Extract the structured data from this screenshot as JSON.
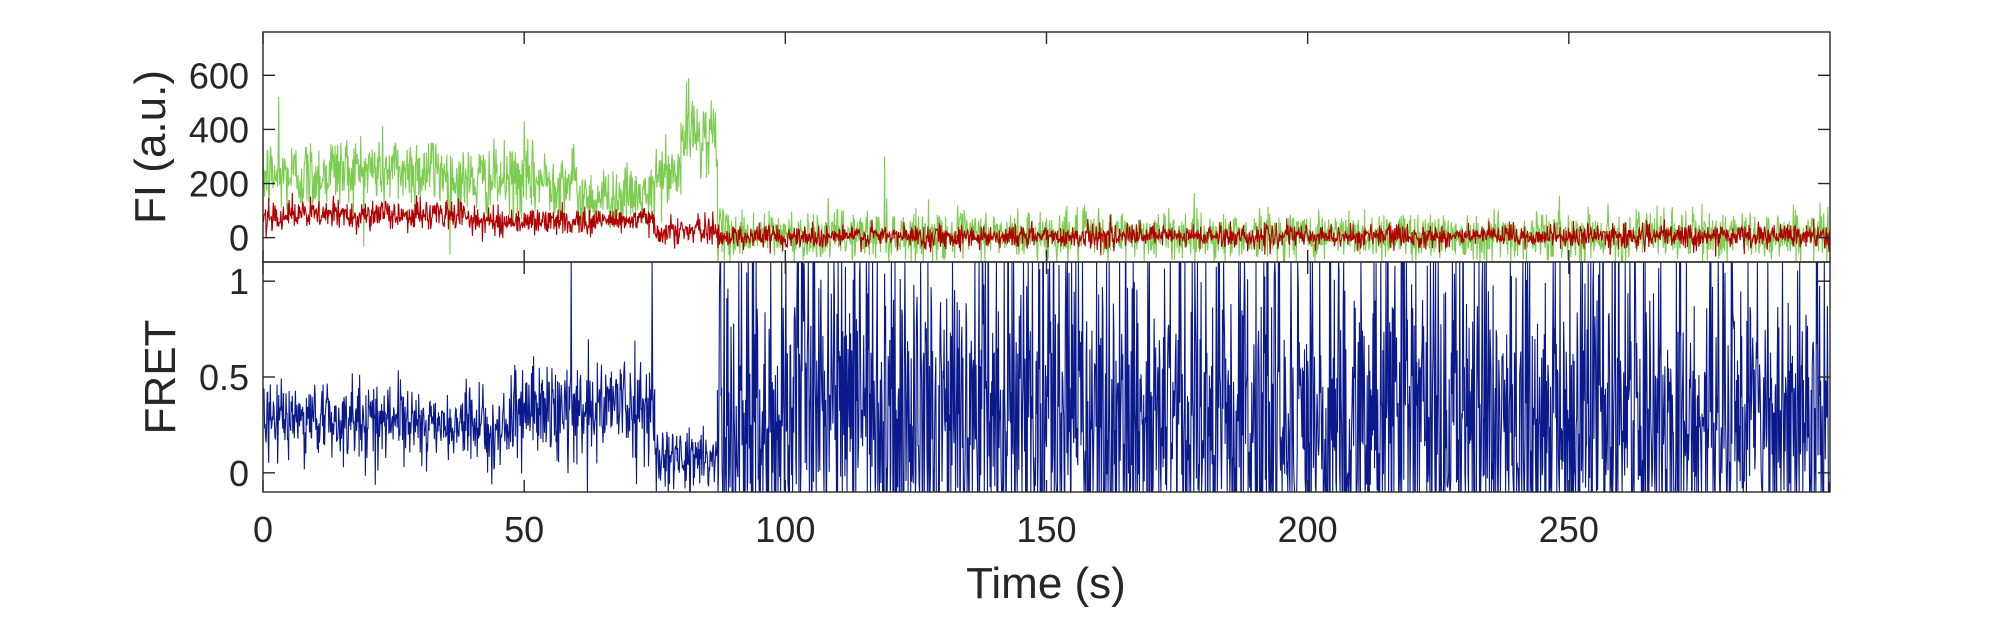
{
  "chart_data": [
    {
      "type": "line",
      "title": "",
      "xlabel": "",
      "ylabel": "FI (a.u.)",
      "xlim": [
        0,
        300
      ],
      "ylim": [
        -90,
        760
      ],
      "yticks": [
        0,
        200,
        400,
        600
      ],
      "ytick_labels": [
        "0",
        "200",
        "400",
        "600"
      ],
      "grid": false,
      "series": [
        {
          "color": "#7ccc50",
          "sample_interval_s": 0.1,
          "segments": [
            {
              "t_start": 0,
              "t_end": 12,
              "mean": 230,
              "noise": 70
            },
            {
              "t_start": 12,
              "t_end": 35,
              "mean": 250,
              "noise": 70
            },
            {
              "t_start": 35,
              "t_end": 60,
              "mean": 210,
              "noise": 65
            },
            {
              "t_start": 60,
              "t_end": 75,
              "mean": 150,
              "noise": 55
            },
            {
              "t_start": 75,
              "t_end": 80,
              "mean": 230,
              "noise": 60
            },
            {
              "t_start": 80,
              "t_end": 87,
              "mean": 380,
              "noise": 70
            },
            {
              "t_start": 87,
              "t_end": 300,
              "mean": 10,
              "noise": 45
            }
          ],
          "peaks": [
            {
              "t": 81.5,
              "value": 590
            },
            {
              "t": 3,
              "value": 520
            },
            {
              "t": 50,
              "value": 430
            },
            {
              "t": 119,
              "value": 300
            }
          ]
        },
        {
          "color": "#b00000",
          "sample_interval_s": 0.1,
          "segments": [
            {
              "t_start": 0,
              "t_end": 40,
              "mean": 85,
              "noise": 28
            },
            {
              "t_start": 40,
              "t_end": 65,
              "mean": 60,
              "noise": 25
            },
            {
              "t_start": 65,
              "t_end": 75,
              "mean": 65,
              "noise": 25
            },
            {
              "t_start": 75,
              "t_end": 87,
              "mean": 25,
              "noise": 25
            },
            {
              "t_start": 87,
              "t_end": 300,
              "mean": 5,
              "noise": 22
            }
          ],
          "peaks": []
        }
      ]
    },
    {
      "type": "line",
      "title": "",
      "xlabel": "Time (s)",
      "ylabel": "FRET",
      "xlim": [
        0,
        300
      ],
      "ylim": [
        -0.1,
        1.1
      ],
      "xticks": [
        0,
        50,
        100,
        150,
        200,
        250
      ],
      "xtick_labels": [
        "0",
        "50",
        "100",
        "150",
        "200",
        "250"
      ],
      "yticks": [
        0,
        0.5,
        1
      ],
      "ytick_labels": [
        "0",
        "0.5",
        "1"
      ],
      "grid": false,
      "series": [
        {
          "color": "#0a1a8c",
          "sample_interval_s": 0.1,
          "segments": [
            {
              "t_start": 0,
              "t_end": 30,
              "mean": 0.28,
              "noise": 0.1
            },
            {
              "t_start": 30,
              "t_end": 48,
              "mean": 0.24,
              "noise": 0.09
            },
            {
              "t_start": 48,
              "t_end": 62,
              "mean": 0.33,
              "noise": 0.12
            },
            {
              "t_start": 62,
              "t_end": 75,
              "mean": 0.35,
              "noise": 0.13
            },
            {
              "t_start": 75,
              "t_end": 87,
              "mean": 0.08,
              "noise": 0.08
            },
            {
              "t_start": 87,
              "t_end": 300,
              "mean": 0.3,
              "noise": 0.38
            }
          ],
          "peaks": [
            {
              "t": 59,
              "value": 1.1
            },
            {
              "t": 74.5,
              "value": 1.1
            }
          ]
        }
      ]
    }
  ]
}
